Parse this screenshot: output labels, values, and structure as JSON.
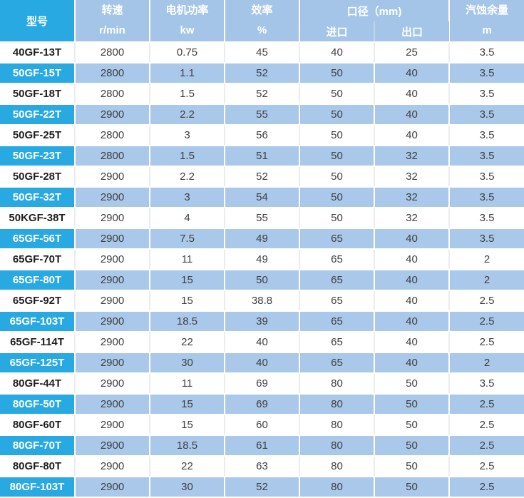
{
  "colors": {
    "accent_cyan": "#29a9e1",
    "header_blue": "#a4c5e7",
    "row_blue": "#a9c8ea",
    "text_dark": "#404040",
    "text_white": "#ffffff"
  },
  "table": {
    "headers": {
      "model": "型号",
      "speed1": "转速",
      "speed2": "r/min",
      "power1": "电机功率",
      "power2": "kw",
      "eff1": "效率",
      "eff2": "%",
      "caliber": "口径（mm)",
      "inlet": "进口",
      "outlet": "出口",
      "npsh1": "汽蚀余量",
      "npsh2": "m"
    }
  },
  "chart_data": {
    "type": "table",
    "title": "",
    "columns": [
      "型号",
      "转速 r/min",
      "电机功率 kw",
      "效率 %",
      "口径（mm) 进口",
      "口径（mm) 出口",
      "汽蚀余量 m"
    ],
    "rows": [
      [
        "40GF-13T",
        "2800",
        "0.75",
        "45",
        "40",
        "25",
        "3.5"
      ],
      [
        "50GF-15T",
        "2800",
        "1.1",
        "52",
        "50",
        "40",
        "3.5"
      ],
      [
        "50GF-18T",
        "2800",
        "1.5",
        "52",
        "50",
        "40",
        "3.5"
      ],
      [
        "50GF-22T",
        "2900",
        "2.2",
        "55",
        "50",
        "40",
        "3.5"
      ],
      [
        "50GF-25T",
        "2800",
        "3",
        "56",
        "50",
        "40",
        "3.5"
      ],
      [
        "50GF-23T",
        "2800",
        "1.5",
        "51",
        "50",
        "32",
        "3.5"
      ],
      [
        "50GF-28T",
        "2900",
        "2.2",
        "52",
        "50",
        "32",
        "3.5"
      ],
      [
        "50GF-32T",
        "2900",
        "3",
        "54",
        "50",
        "32",
        "3.5"
      ],
      [
        "50KGF-38T",
        "2900",
        "4",
        "55",
        "50",
        "32",
        "3.5"
      ],
      [
        "65GF-56T",
        "2900",
        "7.5",
        "49",
        "65",
        "40",
        "3.5"
      ],
      [
        "65GF-70T",
        "2900",
        "11",
        "49",
        "65",
        "40",
        "2"
      ],
      [
        "65GF-80T",
        "2900",
        "15",
        "50",
        "65",
        "40",
        "2"
      ],
      [
        "65GF-92T",
        "2900",
        "15",
        "38.8",
        "65",
        "40",
        "2.5"
      ],
      [
        "65GF-103T",
        "2900",
        "18.5",
        "39",
        "65",
        "40",
        "2.5"
      ],
      [
        "65GF-114T",
        "2900",
        "22",
        "40",
        "65",
        "40",
        "2.5"
      ],
      [
        "65GF-125T",
        "2900",
        "30",
        "40",
        "65",
        "40",
        "2"
      ],
      [
        "80GF-44T",
        "2900",
        "11",
        "69",
        "80",
        "50",
        "3.5"
      ],
      [
        "80GF-50T",
        "2900",
        "15",
        "69",
        "80",
        "50",
        "2.5"
      ],
      [
        "80GF-60T",
        "2900",
        "15",
        "60",
        "80",
        "50",
        "2.5"
      ],
      [
        "80GF-70T",
        "2900",
        "18.5",
        "61",
        "80",
        "50",
        "2.5"
      ],
      [
        "80GF-80T",
        "2900",
        "22",
        "63",
        "80",
        "50",
        "2.5"
      ],
      [
        "80GF-103T",
        "2900",
        "30",
        "52",
        "80",
        "50",
        "2.5"
      ]
    ]
  }
}
